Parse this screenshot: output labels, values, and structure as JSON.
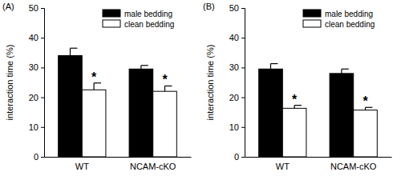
{
  "chart_data": [
    {
      "type": "bar",
      "title": "(A)",
      "y_label": "interaction time (%)",
      "categories": [
        "WT",
        "NCAM-cKO"
      ],
      "series": [
        {
          "name": "male bedding",
          "color": "#000000",
          "values": [
            34.0,
            29.5
          ],
          "errors": [
            2.5,
            1.2
          ]
        },
        {
          "name": "clean bedding",
          "color": "#ffffff",
          "values": [
            22.5,
            22.0
          ],
          "errors": [
            2.3,
            1.8
          ],
          "annotations": [
            "*",
            "*"
          ]
        }
      ],
      "ylim": [
        0,
        50
      ],
      "yticks": [
        0,
        10,
        20,
        30,
        40,
        50
      ],
      "legend": "upper right"
    },
    {
      "type": "bar",
      "title": "(B)",
      "y_label": "interaction time (%)",
      "categories": [
        "WT",
        "NCAM-cKO"
      ],
      "series": [
        {
          "name": "male bedding",
          "color": "#000000",
          "values": [
            29.5,
            28.0
          ],
          "errors": [
            1.8,
            1.5
          ]
        },
        {
          "name": "clean bedding",
          "color": "#ffffff",
          "values": [
            16.3,
            15.7
          ],
          "errors": [
            1.0,
            0.9
          ],
          "annotations": [
            "*",
            "*"
          ]
        }
      ],
      "ylim": [
        0,
        50
      ],
      "yticks": [
        0,
        10,
        20,
        30,
        40,
        50
      ],
      "legend": "upper right"
    }
  ]
}
